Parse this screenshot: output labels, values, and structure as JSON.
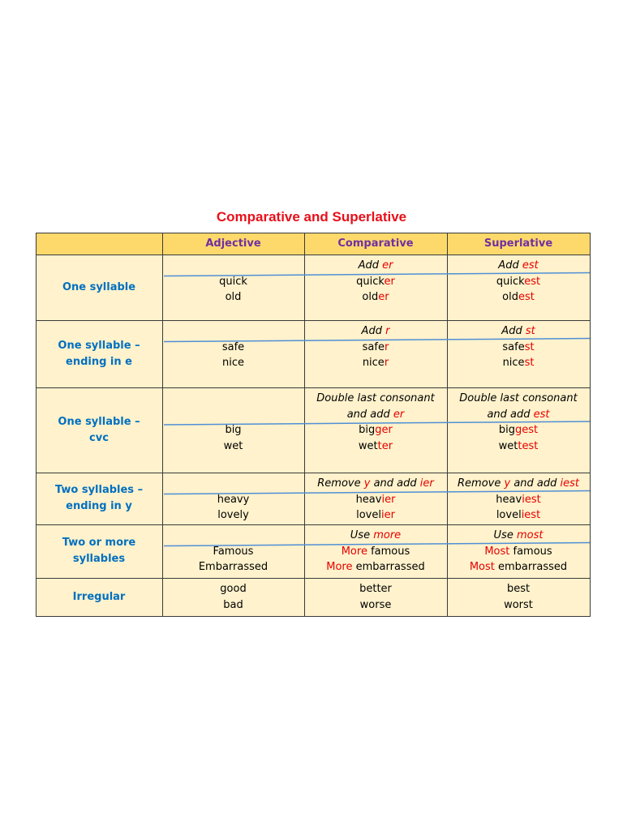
{
  "title": "Comparative and Superlative",
  "header": [
    "Adjective",
    "Comparative",
    "Superlative"
  ],
  "rows": [
    {
      "label": [
        "One syllable"
      ],
      "adjective": [
        "quick",
        "old"
      ],
      "comparative": {
        "rule": [
          [
            {
              "text": "Add "
            },
            {
              "text": "er",
              "color": "#e60000"
            }
          ]
        ],
        "forms": [
          [
            {
              "text": "quick"
            },
            {
              "text": "er",
              "color": "#e60000"
            }
          ],
          [
            {
              "text": "old"
            },
            {
              "text": "er",
              "color": "#e60000"
            }
          ]
        ]
      },
      "superlative": {
        "rule": [
          [
            {
              "text": "Add "
            },
            {
              "text": "est",
              "color": "#e60000"
            }
          ]
        ],
        "forms": [
          [
            {
              "text": "quick"
            },
            {
              "text": "est",
              "color": "#e60000"
            }
          ],
          [
            {
              "text": "old"
            },
            {
              "text": "est",
              "color": "#e60000"
            }
          ]
        ]
      }
    },
    {
      "label": [
        "One syllable –",
        "ending in e"
      ],
      "adjective": [
        "safe",
        "nice"
      ],
      "comparative": {
        "rule": [
          [
            {
              "text": "Add "
            },
            {
              "text": "r",
              "color": "#e60000"
            }
          ]
        ],
        "forms": [
          [
            {
              "text": "safe"
            },
            {
              "text": "r",
              "color": "#e60000"
            }
          ],
          [
            {
              "text": "nice"
            },
            {
              "text": "r",
              "color": "#e60000"
            }
          ]
        ]
      },
      "superlative": {
        "rule": [
          [
            {
              "text": "Add "
            },
            {
              "text": "st",
              "color": "#e60000"
            }
          ]
        ],
        "forms": [
          [
            {
              "text": "safe"
            },
            {
              "text": "st",
              "color": "#e60000"
            }
          ],
          [
            {
              "text": "nice"
            },
            {
              "text": "st",
              "color": "#e60000"
            }
          ]
        ]
      }
    },
    {
      "label": [
        "One syllable –",
        "cvc"
      ],
      "adjective": [
        "big",
        "wet"
      ],
      "comparative": {
        "rule": [
          [
            {
              "text": "Double last consonant"
            }
          ],
          [
            {
              "text": "and add "
            },
            {
              "text": "er",
              "color": "#e60000"
            }
          ]
        ],
        "forms": [
          [
            {
              "text": "big"
            },
            {
              "text": "ger",
              "color": "#e60000"
            }
          ],
          [
            {
              "text": "wet"
            },
            {
              "text": "ter",
              "color": "#e60000"
            }
          ]
        ]
      },
      "superlative": {
        "rule": [
          [
            {
              "text": "Double last consonant"
            }
          ],
          [
            {
              "text": "and add "
            },
            {
              "text": "est",
              "color": "#e60000"
            }
          ]
        ],
        "forms": [
          [
            {
              "text": "big"
            },
            {
              "text": "gest",
              "color": "#e60000"
            }
          ],
          [
            {
              "text": "wet"
            },
            {
              "text": "test",
              "color": "#e60000"
            }
          ]
        ]
      }
    },
    {
      "label": [
        "Two syllables –",
        "ending in y"
      ],
      "adjective": [
        "heavy",
        "lovely"
      ],
      "comparative": {
        "rule": [
          [
            {
              "text": "Remove "
            },
            {
              "text": "y",
              "color": "#e60000"
            },
            {
              "text": " and add "
            },
            {
              "text": "ier",
              "color": "#e60000"
            }
          ]
        ],
        "forms": [
          [
            {
              "text": "heav"
            },
            {
              "text": "ier",
              "color": "#e60000"
            }
          ],
          [
            {
              "text": "lovel"
            },
            {
              "text": "ier",
              "color": "#e60000"
            }
          ]
        ]
      },
      "superlative": {
        "rule": [
          [
            {
              "text": "Remove "
            },
            {
              "text": "y",
              "color": "#e60000"
            },
            {
              "text": " and add "
            },
            {
              "text": "iest",
              "color": "#e60000"
            }
          ]
        ],
        "forms": [
          [
            {
              "text": "heav"
            },
            {
              "text": "iest",
              "color": "#e60000"
            }
          ],
          [
            {
              "text": "lovel"
            },
            {
              "text": "iest",
              "color": "#e60000"
            }
          ]
        ]
      }
    },
    {
      "label": [
        "Two or more",
        "syllables"
      ],
      "adjective": [
        "Famous",
        "Embarrassed"
      ],
      "comparative": {
        "rule": [
          [
            {
              "text": "Use "
            },
            {
              "text": "more",
              "color": "#e60000"
            }
          ]
        ],
        "forms": [
          [
            {
              "text": "More",
              "color": "#e60000"
            },
            {
              "text": " famous"
            }
          ],
          [
            {
              "text": "More",
              "color": "#e60000"
            },
            {
              "text": " embarrassed"
            }
          ]
        ]
      },
      "superlative": {
        "rule": [
          [
            {
              "text": "Use "
            },
            {
              "text": "most",
              "color": "#e60000"
            }
          ]
        ],
        "forms": [
          [
            {
              "text": "Most",
              "color": "#e60000"
            },
            {
              "text": " famous"
            }
          ],
          [
            {
              "text": "Most",
              "color": "#e60000"
            },
            {
              "text": " embarrassed"
            }
          ]
        ]
      }
    },
    {
      "label": [
        "Irregular"
      ],
      "adjective": [
        "good",
        "bad"
      ],
      "comparative": {
        "rule": [],
        "forms": [
          [
            {
              "text": "better"
            }
          ],
          [
            {
              "text": "worse"
            }
          ]
        ]
      },
      "superlative": {
        "rule": [],
        "forms": [
          [
            {
              "text": "best"
            }
          ],
          [
            {
              "text": "worst"
            }
          ]
        ]
      }
    }
  ]
}
